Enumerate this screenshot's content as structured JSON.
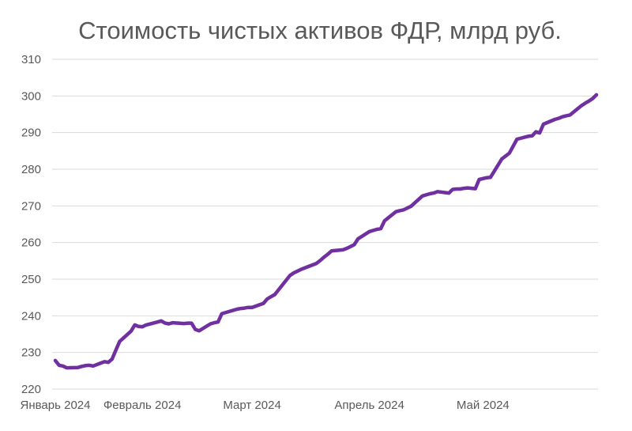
{
  "chart_data": {
    "type": "line",
    "title": "Стоимость чистых активов ФДР, млрд руб.",
    "xlabel": "",
    "ylabel": "",
    "ylim": [
      220,
      310
    ],
    "yticks": [
      220,
      230,
      240,
      250,
      260,
      270,
      280,
      290,
      300,
      310
    ],
    "xlim": [
      "2024-01-09",
      "2024-05-31"
    ],
    "xticks": [
      {
        "date": "2024-01-09",
        "label": "Январь 2024"
      },
      {
        "date": "2024-02-01",
        "label": "Февраль 2024"
      },
      {
        "date": "2024-03-01",
        "label": "Март 2024"
      },
      {
        "date": "2024-04-01",
        "label": "Апрель 2024"
      },
      {
        "date": "2024-05-01",
        "label": "Май 2024"
      }
    ],
    "grid": true,
    "legend": "none",
    "line_color": "#7030a0",
    "series": [
      {
        "x": [
          "2024-01-09",
          "2024-01-10",
          "2024-01-11",
          "2024-01-12",
          "2024-01-15",
          "2024-01-16",
          "2024-01-17",
          "2024-01-18",
          "2024-01-19",
          "2024-01-22",
          "2024-01-23",
          "2024-01-24",
          "2024-01-25",
          "2024-01-26",
          "2024-01-29",
          "2024-01-30",
          "2024-01-31",
          "2024-02-01",
          "2024-02-02",
          "2024-02-05",
          "2024-02-06",
          "2024-02-07",
          "2024-02-08",
          "2024-02-09",
          "2024-02-12",
          "2024-02-13",
          "2024-02-14",
          "2024-02-15",
          "2024-02-16",
          "2024-02-19",
          "2024-02-20",
          "2024-02-21",
          "2024-02-22",
          "2024-02-26",
          "2024-02-27",
          "2024-02-28",
          "2024-02-29",
          "2024-03-01",
          "2024-03-04",
          "2024-03-05",
          "2024-03-06",
          "2024-03-07",
          "2024-03-11",
          "2024-03-12",
          "2024-03-13",
          "2024-03-14",
          "2024-03-15",
          "2024-03-18",
          "2024-03-19",
          "2024-03-20",
          "2024-03-21",
          "2024-03-22",
          "2024-03-25",
          "2024-03-26",
          "2024-03-27",
          "2024-03-28",
          "2024-03-29",
          "2024-04-01",
          "2024-04-02",
          "2024-04-03",
          "2024-04-04",
          "2024-04-05",
          "2024-04-08",
          "2024-04-09",
          "2024-04-10",
          "2024-04-11",
          "2024-04-12",
          "2024-04-15",
          "2024-04-16",
          "2024-04-17",
          "2024-04-18",
          "2024-04-19",
          "2024-04-22",
          "2024-04-23",
          "2024-04-24",
          "2024-04-25",
          "2024-04-26",
          "2024-04-27",
          "2024-04-29",
          "2024-04-30",
          "2024-05-02",
          "2024-05-03",
          "2024-05-06",
          "2024-05-07",
          "2024-05-08",
          "2024-05-10",
          "2024-05-13",
          "2024-05-14",
          "2024-05-15",
          "2024-05-16",
          "2024-05-17",
          "2024-05-20",
          "2024-05-21",
          "2024-05-22",
          "2024-05-23",
          "2024-05-24",
          "2024-05-27",
          "2024-05-28",
          "2024-05-29",
          "2024-05-30",
          "2024-05-31"
        ],
        "y": [
          227.8,
          226.5,
          226.3,
          225.8,
          225.9,
          226.2,
          226.4,
          226.5,
          226.3,
          227.5,
          227.3,
          228.2,
          230.6,
          233.0,
          235.8,
          237.5,
          237.1,
          237.0,
          237.5,
          238.3,
          238.6,
          238.0,
          237.8,
          238.1,
          237.9,
          238.0,
          238.0,
          236.3,
          235.9,
          237.8,
          238.1,
          238.3,
          240.6,
          241.8,
          242.0,
          242.1,
          242.3,
          242.3,
          243.4,
          244.6,
          245.2,
          245.8,
          251.0,
          251.7,
          252.2,
          252.7,
          253.1,
          254.3,
          255.1,
          256.0,
          256.8,
          257.7,
          258.0,
          258.4,
          258.9,
          259.4,
          261.0,
          263.0,
          263.3,
          263.6,
          263.8,
          265.9,
          268.4,
          268.7,
          268.9,
          269.4,
          269.9,
          272.7,
          273.0,
          273.3,
          273.5,
          273.9,
          273.5,
          274.5,
          274.6,
          274.6,
          274.8,
          274.9,
          274.7,
          277.2,
          277.7,
          277.8,
          282.8,
          283.6,
          284.4,
          288.2,
          289.0,
          289.1,
          290.2,
          289.9,
          292.3,
          293.6,
          293.9,
          294.3,
          294.6,
          294.8,
          297.3,
          298.0,
          298.6,
          299.3,
          300.3
        ]
      }
    ]
  }
}
